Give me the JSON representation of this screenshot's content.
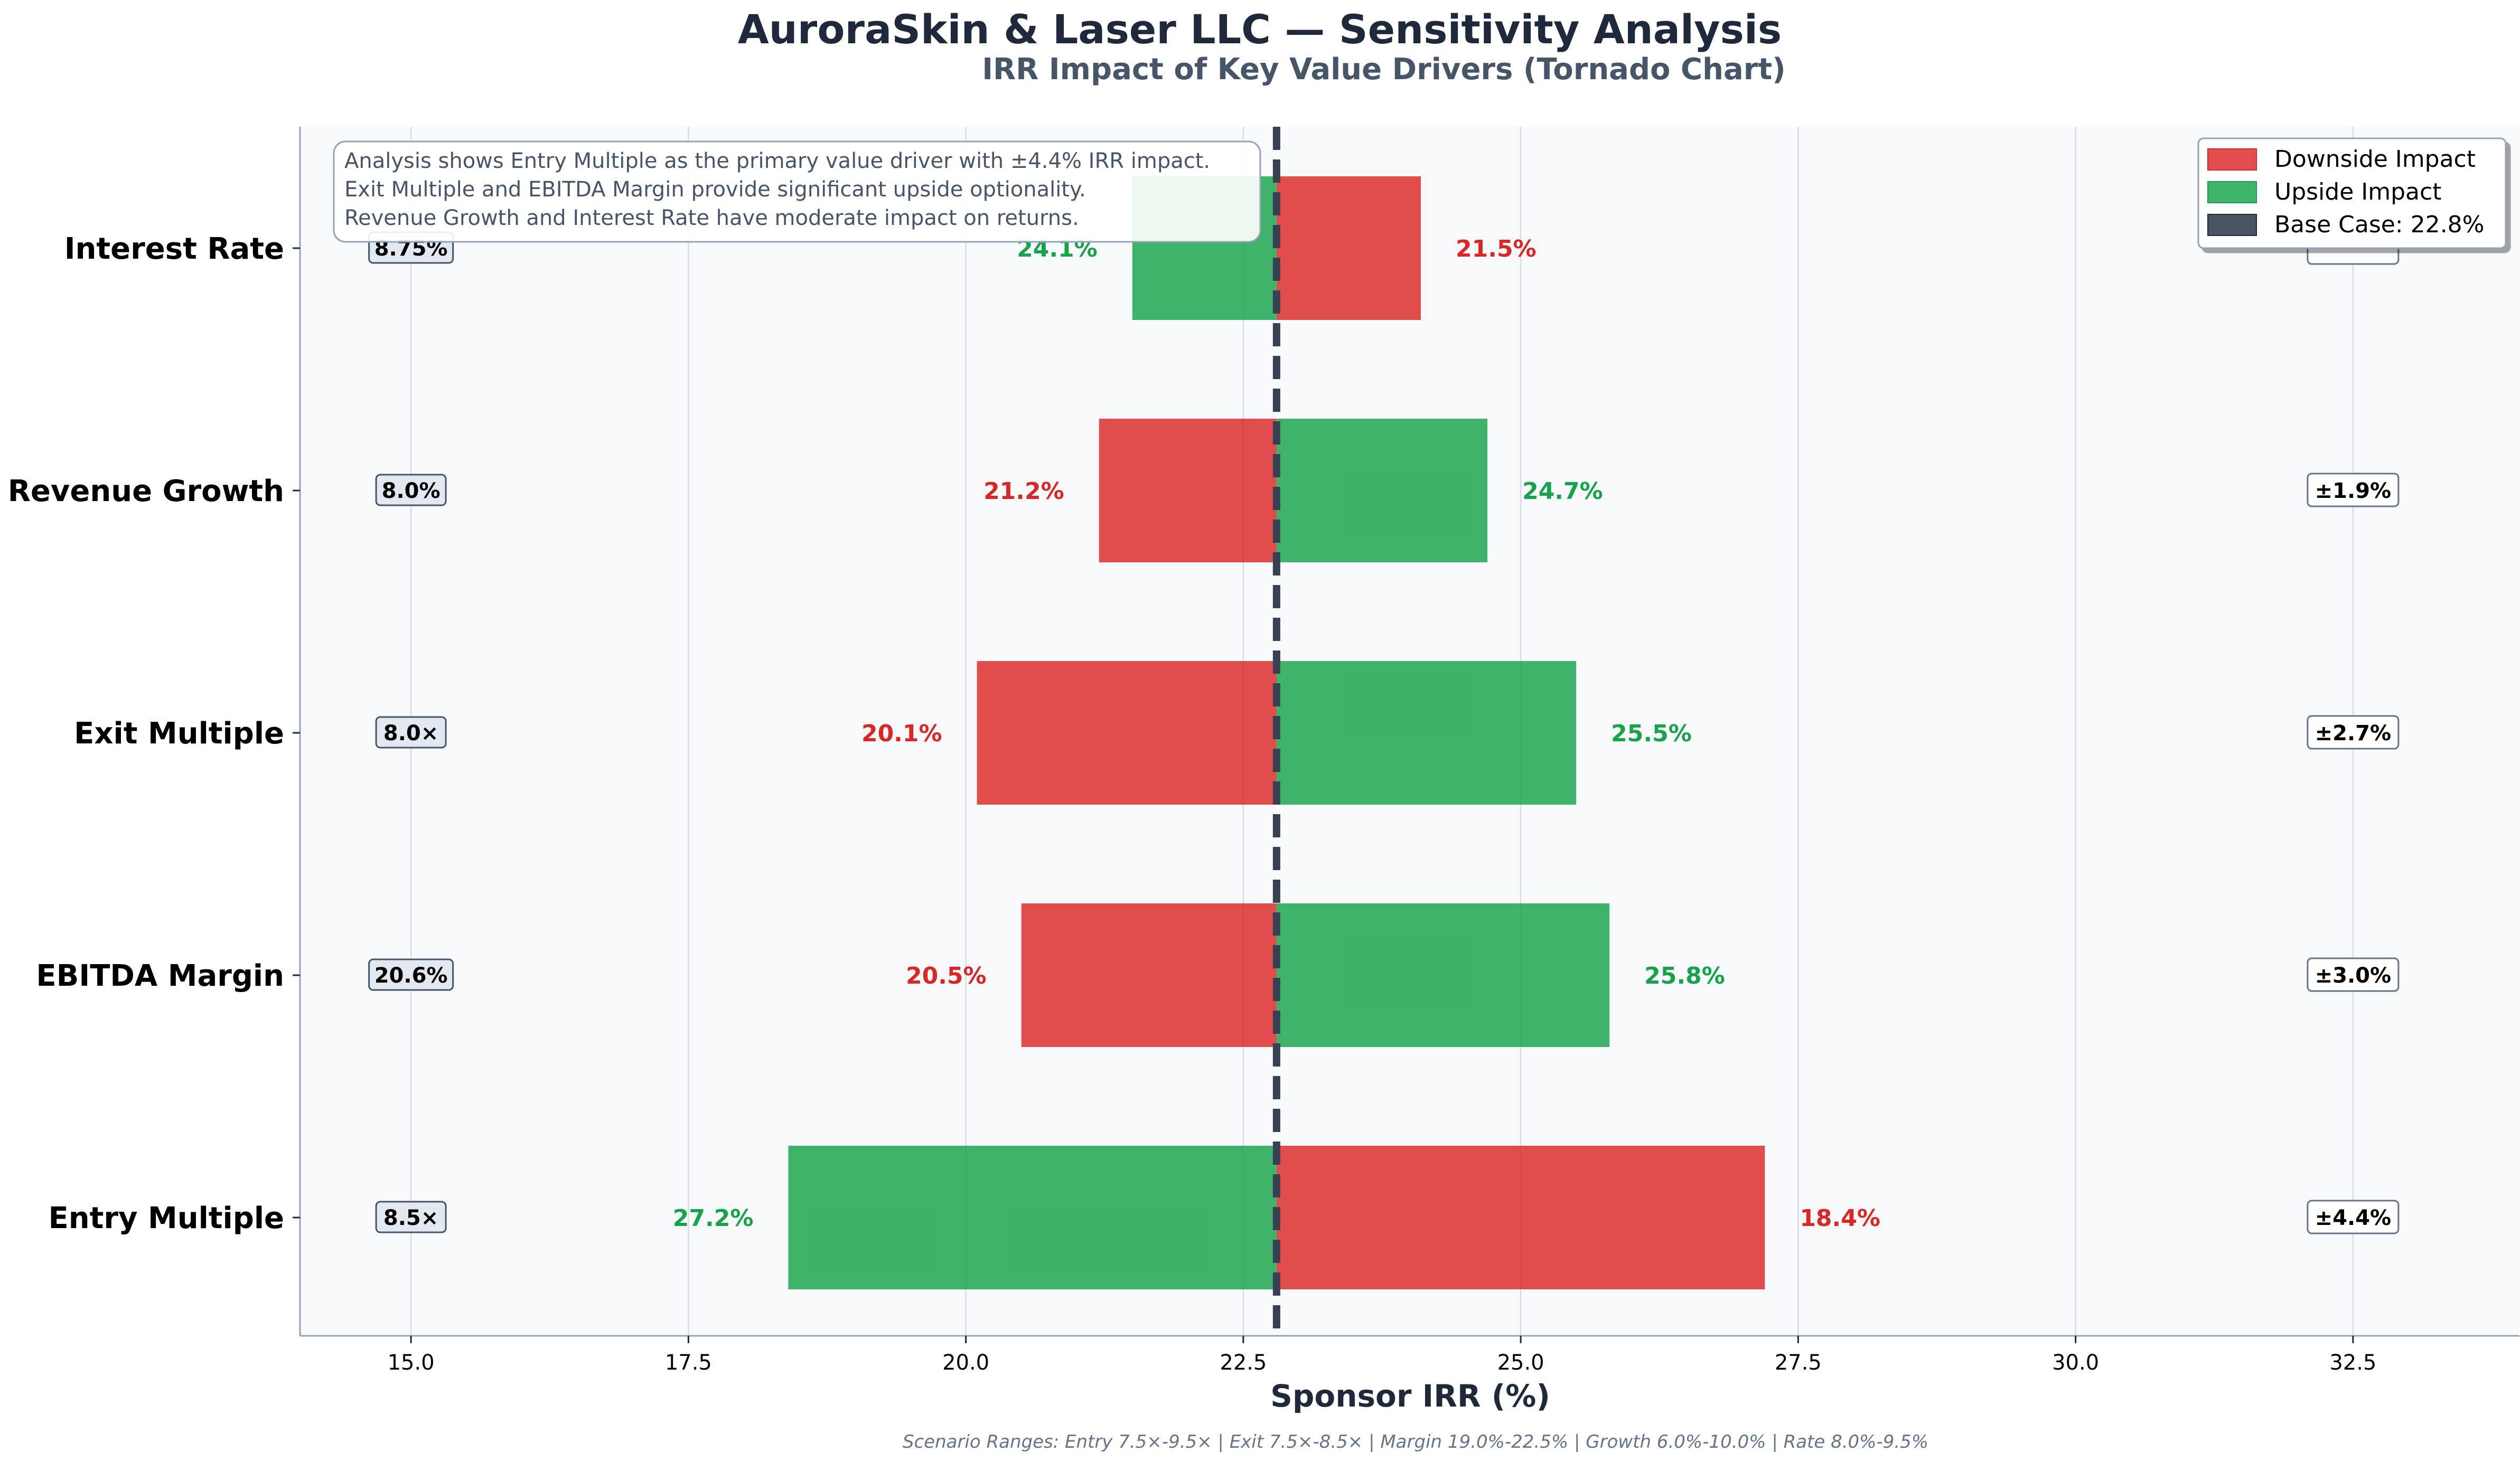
{
  "chart_data": {
    "type": "bar",
    "orientation": "horizontal",
    "title": "AuroraSkin & Laser LLC — Sensitivity Analysis",
    "subtitle": "IRR Impact of Key Value Drivers (Tornado Chart)",
    "xlabel": "Sponsor IRR (%)",
    "ylabel": "",
    "xlim": [
      14.0,
      34.0
    ],
    "x_ticks": [
      "15.0",
      "17.5",
      "20.0",
      "22.5",
      "25.0",
      "27.5",
      "30.0",
      "32.5"
    ],
    "x_tick_values": [
      15.0,
      17.5,
      20.0,
      22.5,
      25.0,
      27.5,
      30.0,
      32.5
    ],
    "grid": "vertical",
    "base_case": 22.8,
    "legend_position": "top-right",
    "legend": [
      "Downside Impact",
      "Upside Impact",
      "Base Case: 22.8%"
    ],
    "colors": {
      "downside": "#dc2626",
      "upside": "#16a34a",
      "downside_text": "#dc2626",
      "upside_text": "#16a34a",
      "base_line": "#374151",
      "plot_bg": "#f8f9fa",
      "title": "#1e293b",
      "subtitle": "#475569"
    },
    "categories": [
      "Interest Rate",
      "Revenue Growth",
      "Exit Multiple",
      "EBITDA Margin",
      "Entry Multiple"
    ],
    "drivers": [
      {
        "name": "Interest Rate",
        "base_value": "8.75%",
        "downside_irr": 24.1,
        "upside_irr": 21.5,
        "downside_label": "21.5%",
        "upside_label": "24.1%",
        "range_label": ""
      },
      {
        "name": "Revenue Growth",
        "base_value": "8.0%",
        "downside_irr": 21.2,
        "upside_irr": 24.7,
        "downside_label": "21.2%",
        "upside_label": "24.7%",
        "range_label": "±1.9%"
      },
      {
        "name": "Exit Multiple",
        "base_value": "8.0×",
        "downside_irr": 20.1,
        "upside_irr": 25.5,
        "downside_label": "20.1%",
        "upside_label": "25.5%",
        "range_label": "±2.7%"
      },
      {
        "name": "EBITDA Margin",
        "base_value": "20.6%",
        "downside_irr": 20.5,
        "upside_irr": 25.8,
        "downside_label": "20.5%",
        "upside_label": "25.8%",
        "range_label": "±3.0%"
      },
      {
        "name": "Entry Multiple",
        "base_value": "8.5×",
        "downside_irr": 27.2,
        "upside_irr": 18.4,
        "downside_label": "18.4%",
        "upside_label": "27.2%",
        "range_label": "±4.4%"
      }
    ],
    "annotation": [
      "Analysis shows Entry Multiple as the primary value driver with ±4.4% IRR impact.",
      "Exit Multiple and EBITDA Margin provide significant upside optionality.",
      "Revenue Growth and Interest Rate have moderate impact on returns."
    ],
    "footnote": "Scenario Ranges: Entry 7.5×-9.5× | Exit 7.5×-8.5× | Margin 19.0%-22.5% | Growth 6.0%-10.0% | Rate 8.0%-9.5%"
  }
}
